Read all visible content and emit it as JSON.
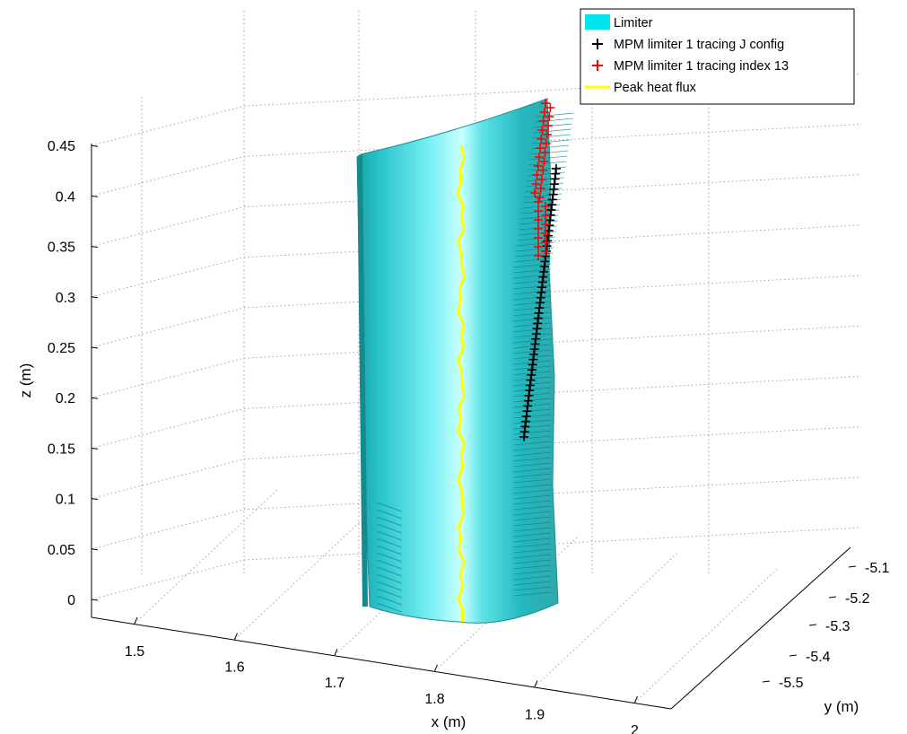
{
  "chart_data": {
    "type": "surface3d",
    "xlabel": "x (m)",
    "ylabel": "y (m)",
    "zlabel": "z (m)",
    "xlim": [
      1.45,
      2.05
    ],
    "ylim": [
      -5.55,
      -5.05
    ],
    "zlim": [
      0,
      0.45
    ],
    "x_ticks": [
      "1.5",
      "1.6",
      "1.7",
      "1.8",
      "1.9",
      "2"
    ],
    "y_ticks": [
      "-5.1",
      "-5.2",
      "-5.3",
      "-5.4",
      "-5.5"
    ],
    "z_ticks": [
      "0",
      "0.05",
      "0.1",
      "0.15",
      "0.2",
      "0.25",
      "0.3",
      "0.35",
      "0.4",
      "0.45"
    ],
    "grid": true,
    "legend_position": "top-right",
    "legend": [
      {
        "label": "Limiter",
        "style": "patch",
        "color": "#00e5ee"
      },
      {
        "label": "MPM limiter 1 tracing J config",
        "style": "plus",
        "color": "#000000"
      },
      {
        "label": "MPM limiter 1 tracing index 13",
        "style": "plus",
        "color": "#ff0000"
      },
      {
        "label": "Peak heat flux",
        "style": "line",
        "color": "#ffff00"
      }
    ],
    "series": [
      {
        "name": "Peak heat flux",
        "z": [
          0,
          0.05,
          0.1,
          0.15,
          0.2,
          0.25,
          0.3,
          0.35,
          0.4,
          0.45
        ]
      },
      {
        "name": "MPM limiter 1 tracing J config",
        "z_range": [
          0.17,
          0.42
        ]
      },
      {
        "name": "MPM limiter 1 tracing index 13",
        "z_range": [
          0.39,
          0.5
        ]
      }
    ]
  }
}
